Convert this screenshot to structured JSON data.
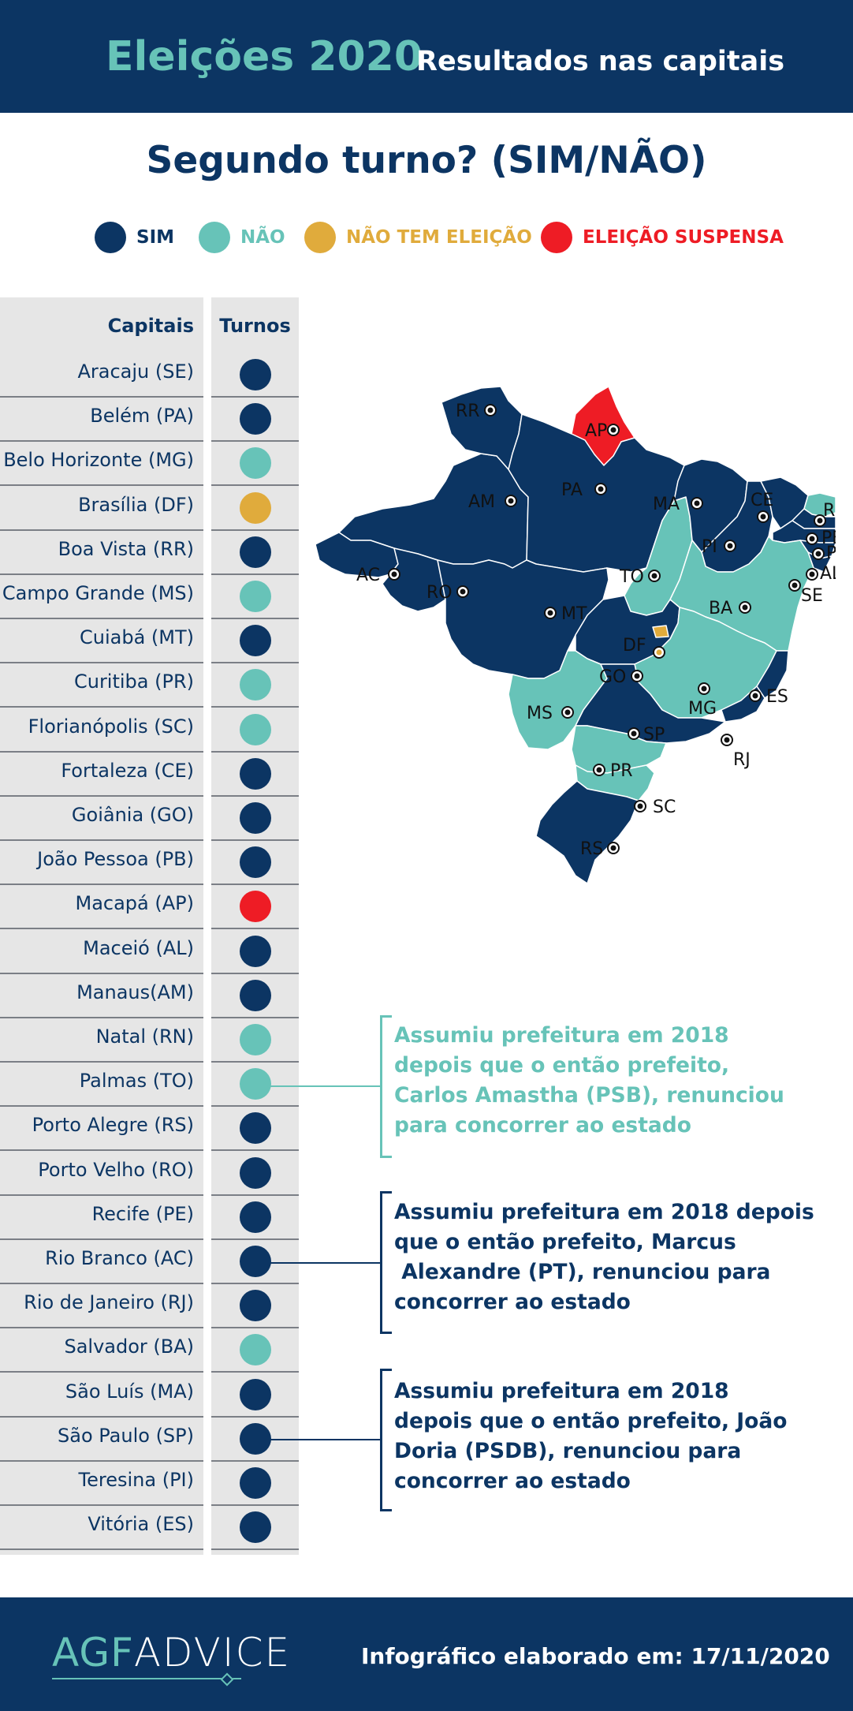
{
  "header": {
    "title": "Eleições 2020",
    "subtitle": "Resultados nas capitais"
  },
  "question": "Segundo turno? (SIM/NÃO)",
  "legend": [
    {
      "label": "SIM",
      "color": "#0c3563"
    },
    {
      "label": "NÃO",
      "color": "#67c3b8"
    },
    {
      "label": "NÃO TEM ELEIÇÃO",
      "color": "#e0ab3c"
    },
    {
      "label": "ELEIÇÃO SUSPENSA",
      "color": "#ee1c25"
    }
  ],
  "table": {
    "col_capitais": "Capitais",
    "col_turnos": "Turnos",
    "rows": [
      {
        "name": "Aracaju (SE)",
        "status": "sim"
      },
      {
        "name": "Belém (PA)",
        "status": "sim"
      },
      {
        "name": "Belo Horizonte (MG)",
        "status": "nao"
      },
      {
        "name": "Brasília (DF)",
        "status": "sem"
      },
      {
        "name": "Boa Vista (RR)",
        "status": "sim"
      },
      {
        "name": "Campo Grande (MS)",
        "status": "nao"
      },
      {
        "name": "Cuiabá (MT)",
        "status": "sim"
      },
      {
        "name": "Curitiba (PR)",
        "status": "nao"
      },
      {
        "name": "Florianópolis (SC)",
        "status": "nao"
      },
      {
        "name": "Fortaleza (CE)",
        "status": "sim"
      },
      {
        "name": "Goiânia (GO)",
        "status": "sim"
      },
      {
        "name": "João Pessoa (PB)",
        "status": "sim"
      },
      {
        "name": "Macapá (AP)",
        "status": "suspensa"
      },
      {
        "name": "Maceió (AL)",
        "status": "sim"
      },
      {
        "name": "Manaus(AM)",
        "status": "sim"
      },
      {
        "name": "Natal (RN)",
        "status": "nao"
      },
      {
        "name": "Palmas (TO)",
        "status": "nao"
      },
      {
        "name": "Porto Alegre (RS)",
        "status": "sim"
      },
      {
        "name": "Porto Velho (RO)",
        "status": "sim"
      },
      {
        "name": "Recife (PE)",
        "status": "sim"
      },
      {
        "name": "Rio Branco (AC)",
        "status": "sim"
      },
      {
        "name": "Rio de Janeiro (RJ)",
        "status": "sim"
      },
      {
        "name": "Salvador (BA)",
        "status": "nao"
      },
      {
        "name": "São Luís (MA)",
        "status": "sim"
      },
      {
        "name": "São Paulo (SP)",
        "status": "sim"
      },
      {
        "name": "Teresina (PI)",
        "status": "sim"
      },
      {
        "name": "Vitória (ES)",
        "status": "sim"
      }
    ]
  },
  "map": {
    "states": {
      "RR": "sim",
      "AP": "suspensa",
      "AM": "sim",
      "PA": "sim",
      "MA": "sim",
      "CE": "sim",
      "RN": "nao",
      "PB": "sim",
      "PE": "sim",
      "AL": "sim",
      "SE": "sim",
      "PI": "sim",
      "TO": "nao",
      "BA": "nao",
      "AC": "sim",
      "RO": "sim",
      "MT": "sim",
      "DF": "sem",
      "GO": "sim",
      "MG": "nao",
      "ES": "sim",
      "MS": "nao",
      "SP": "sim",
      "RJ": "sim",
      "PR": "nao",
      "SC": "nao",
      "RS": "sim"
    }
  },
  "notes": [
    {
      "text_lines": [
        "Assumiu prefeitura em 2018",
        "depois que o então prefeito,",
        "Carlos Amastha (PSB), renunciou",
        "para concorrer ao estado"
      ],
      "color": "#67c3b8"
    },
    {
      "text_lines": [
        "Assumiu prefeitura em 2018 depois",
        "que o então prefeito, Marcus",
        " Alexandre (PT), renunciou para",
        "concorrer ao estado"
      ],
      "color": "#0c3563"
    },
    {
      "text_lines": [
        "Assumiu prefeitura em 2018",
        "depois que o então prefeito, João",
        "Doria (PSDB), renunciou para",
        "concorrer ao estado"
      ],
      "color": "#0c3563"
    }
  ],
  "footer": {
    "logo_part1": "AGF",
    "logo_part2": "ADVICE",
    "credit": "Infográfico elaborado em: 17/11/2020"
  },
  "colors": {
    "sim": "#0c3563",
    "nao": "#67c3b8",
    "sem": "#e0ab3c",
    "suspensa": "#ee1c25"
  }
}
